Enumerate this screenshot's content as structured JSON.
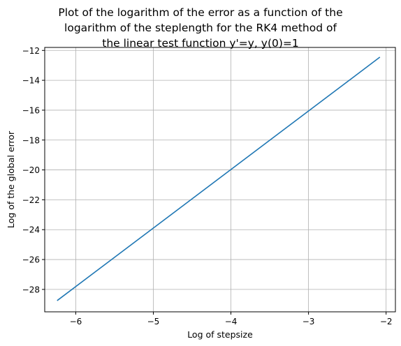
{
  "chart_data": {
    "type": "line",
    "title_lines": [
      "Plot of the logarithm of the error as a function of the",
      "logarithm of the steplength for the RK4 method of",
      "the linear test function y'=y, y(0)=1"
    ],
    "xlabel": "Log of stepsize",
    "ylabel": "Log of the global error",
    "xlim": [
      -6.4,
      -1.88
    ],
    "ylim": [
      -29.5,
      -11.8
    ],
    "xticks": [
      -6,
      -5,
      -4,
      -3,
      -2
    ],
    "xtick_labels": [
      "−6",
      "−5",
      "−4",
      "−3",
      "−2"
    ],
    "yticks": [
      -28,
      -26,
      -24,
      -22,
      -20,
      -18,
      -16,
      -14,
      -12
    ],
    "ytick_labels": [
      "−28",
      "−26",
      "−24",
      "−22",
      "−20",
      "−18",
      "−16",
      "−14",
      "−12"
    ],
    "grid": true,
    "series": [
      {
        "color": "#1f77b4",
        "x": [
          -6.24,
          -2.08
        ],
        "y": [
          -28.75,
          -12.45
        ]
      }
    ]
  }
}
